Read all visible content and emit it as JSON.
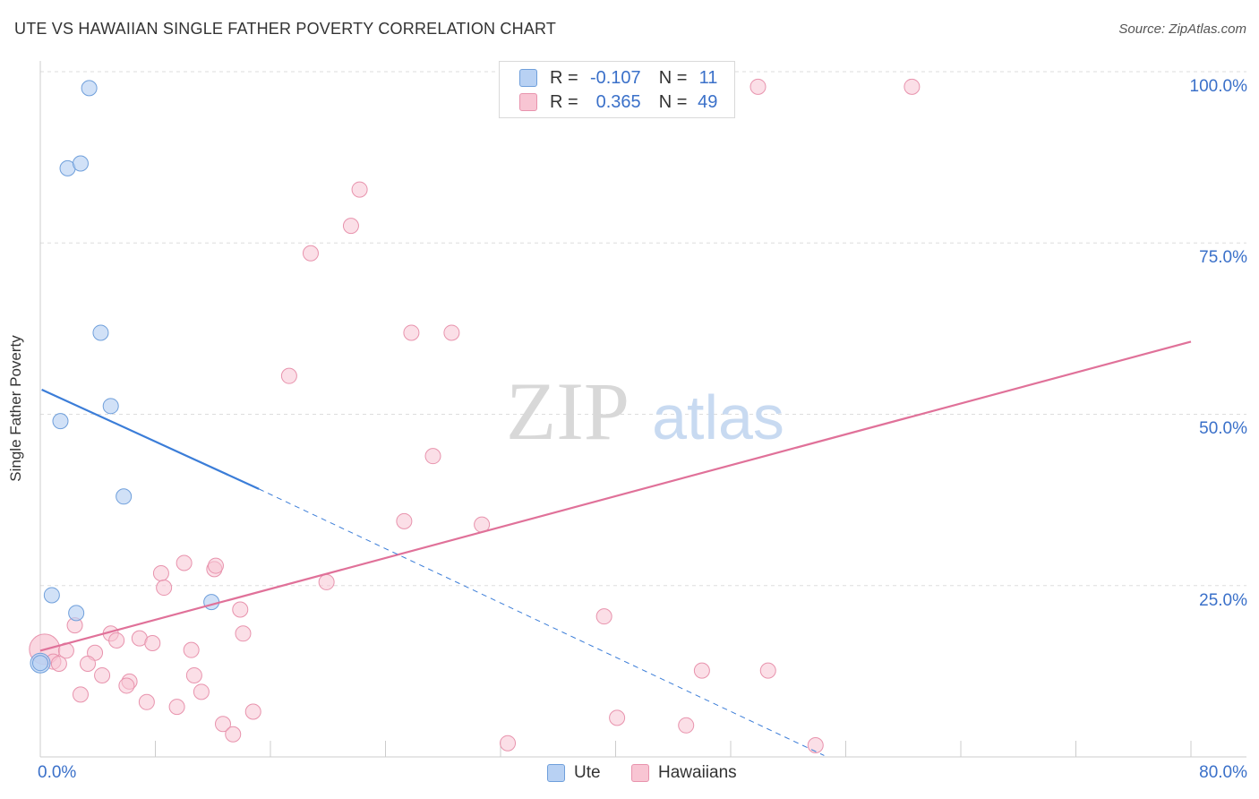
{
  "header": {
    "title": "UTE VS HAWAIIAN SINGLE FATHER POVERTY CORRELATION CHART",
    "source_prefix": "Source: ",
    "source_name": "ZipAtlas.com"
  },
  "legend": {
    "ute": {
      "r_label": "R =",
      "r_value": "-0.107",
      "n_label": "N =",
      "n_value": "11"
    },
    "hawaiians": {
      "r_label": "R =",
      "r_value": "0.365",
      "n_label": "N =",
      "n_value": "49"
    }
  },
  "colors": {
    "ute_fill": "#b8d1f3",
    "ute_stroke": "#6f9fdb",
    "ute_line": "#3b7dd8",
    "haw_fill": "#f8c5d3",
    "haw_stroke": "#e893ad",
    "haw_line": "#e07199",
    "axis_text": "#3a70c9",
    "grid": "#dddddd"
  },
  "chart_data": {
    "type": "scatter",
    "title": "UTE VS HAWAIIAN SINGLE FATHER POVERTY CORRELATION CHART",
    "xlabel": "",
    "ylabel": "Single Father Poverty",
    "xlim": [
      0,
      80
    ],
    "ylim": [
      0,
      100
    ],
    "x_tick_labels": [
      "0.0%",
      "80.0%"
    ],
    "y_tick_labels": [
      "25.0%",
      "50.0%",
      "75.0%",
      "100.0%"
    ],
    "y_ticks": [
      25,
      50,
      75,
      100
    ],
    "watermark": {
      "zip": "ZIP",
      "atlas": "atlas"
    },
    "series": [
      {
        "name": "Ute",
        "r": -0.107,
        "n": 11,
        "points": [
          [
            3.4,
            97.6
          ],
          [
            1.9,
            85.9
          ],
          [
            2.8,
            86.6
          ],
          [
            4.2,
            61.9
          ],
          [
            4.9,
            51.2
          ],
          [
            1.4,
            49.0
          ],
          [
            5.8,
            38.0
          ],
          [
            0.8,
            23.6
          ],
          [
            2.5,
            21.0
          ],
          [
            11.9,
            22.6
          ],
          [
            0.0,
            13.7
          ]
        ],
        "big_points": [
          [
            0.0,
            13.7
          ]
        ],
        "trend_solid": [
          [
            0.1,
            53.6
          ],
          [
            15.2,
            39.1
          ]
        ],
        "trend_dashed": [
          [
            15.2,
            39.1
          ],
          [
            54.5,
            0.2
          ]
        ]
      },
      {
        "name": "Hawaiians",
        "r": 0.365,
        "n": 49,
        "points": [
          [
            49.9,
            97.8
          ],
          [
            60.6,
            97.8
          ],
          [
            22.2,
            82.8
          ],
          [
            21.6,
            77.5
          ],
          [
            18.8,
            73.5
          ],
          [
            25.8,
            61.9
          ],
          [
            28.6,
            61.9
          ],
          [
            17.3,
            55.6
          ],
          [
            27.3,
            43.9
          ],
          [
            25.3,
            34.4
          ],
          [
            30.7,
            33.9
          ],
          [
            10.0,
            28.3
          ],
          [
            8.4,
            26.8
          ],
          [
            12.1,
            27.4
          ],
          [
            12.2,
            27.9
          ],
          [
            8.6,
            24.7
          ],
          [
            19.9,
            25.5
          ],
          [
            13.9,
            21.5
          ],
          [
            39.2,
            20.5
          ],
          [
            2.4,
            19.2
          ],
          [
            4.9,
            18.0
          ],
          [
            14.1,
            18.0
          ],
          [
            5.3,
            17.0
          ],
          [
            6.9,
            17.3
          ],
          [
            7.8,
            16.6
          ],
          [
            1.8,
            15.5
          ],
          [
            3.8,
            15.2
          ],
          [
            10.5,
            15.6
          ],
          [
            0.9,
            13.9
          ],
          [
            1.3,
            13.6
          ],
          [
            3.3,
            13.6
          ],
          [
            4.3,
            11.9
          ],
          [
            46.0,
            12.6
          ],
          [
            50.6,
            12.6
          ],
          [
            6.2,
            11.0
          ],
          [
            6.0,
            10.4
          ],
          [
            10.7,
            11.9
          ],
          [
            11.2,
            9.5
          ],
          [
            2.8,
            9.1
          ],
          [
            7.4,
            8.0
          ],
          [
            9.5,
            7.3
          ],
          [
            14.8,
            6.6
          ],
          [
            40.1,
            5.7
          ],
          [
            12.7,
            4.8
          ],
          [
            44.9,
            4.6
          ],
          [
            13.4,
            3.3
          ],
          [
            32.5,
            2.0
          ],
          [
            53.9,
            1.7
          ]
        ],
        "big_points": [
          [
            0.3,
            15.7
          ]
        ],
        "trend_solid": [
          [
            0.0,
            15.5
          ],
          [
            80.0,
            60.6
          ]
        ]
      }
    ]
  },
  "bottom_legend": {
    "ute_label": "Ute",
    "haw_label": "Hawaiians"
  }
}
